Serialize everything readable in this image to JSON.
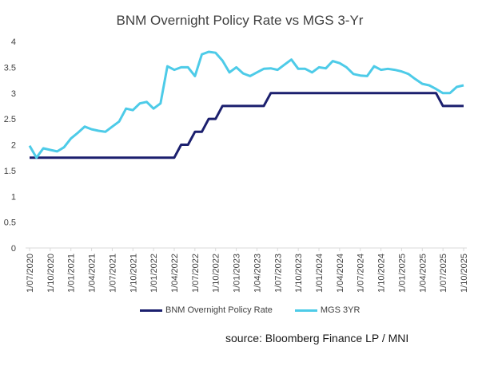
{
  "chart_data": {
    "type": "line",
    "title": "BNM Overnight Policy Rate vs MGS 3-Yr",
    "xlabel": "",
    "ylabel": "",
    "ylim": [
      0,
      4
    ],
    "yticks": [
      "0",
      "0.5",
      "1",
      "1.5",
      "2",
      "2.5",
      "3",
      "3.5",
      "4"
    ],
    "grid": false,
    "legend_position": "bottom",
    "x_tick_labels": [
      "1/07/2020",
      "1/10/2020",
      "1/01/2021",
      "1/04/2021",
      "1/07/2021",
      "1/10/2021",
      "1/01/2022",
      "1/04/2022",
      "1/07/2022",
      "1/10/2022",
      "1/01/2023",
      "1/04/2023",
      "1/07/2023",
      "1/10/2023",
      "1/01/2024",
      "1/04/2024",
      "1/07/2024",
      "1/10/2024",
      "1/01/2025",
      "1/04/2025",
      "1/07/2025",
      "1/10/2025"
    ],
    "x_months": [
      0,
      3,
      6,
      9,
      12,
      15,
      18,
      21,
      24,
      27,
      30,
      33,
      36,
      39,
      42,
      45,
      48,
      51,
      54,
      57,
      60,
      63
    ],
    "series": [
      {
        "name": "BNM Overnight Policy Rate",
        "color": "#1b1f6e",
        "x": [
          0,
          1,
          2,
          3,
          4,
          5,
          6,
          7,
          8,
          9,
          10,
          11,
          12,
          13,
          14,
          15,
          16,
          17,
          18,
          19,
          20,
          21,
          22,
          23,
          24,
          25,
          26,
          27,
          28,
          29,
          30,
          31,
          32,
          33,
          34,
          35,
          36,
          37,
          38,
          39,
          40,
          41,
          42,
          43,
          44,
          45,
          46,
          47,
          48,
          49,
          50,
          51,
          52,
          53,
          54,
          55,
          56,
          57,
          58,
          59,
          60,
          61,
          62,
          63
        ],
        "values": [
          1.75,
          1.75,
          1.75,
          1.75,
          1.75,
          1.75,
          1.75,
          1.75,
          1.75,
          1.75,
          1.75,
          1.75,
          1.75,
          1.75,
          1.75,
          1.75,
          1.75,
          1.75,
          1.75,
          1.75,
          1.75,
          1.75,
          2.0,
          2.0,
          2.25,
          2.25,
          2.5,
          2.5,
          2.75,
          2.75,
          2.75,
          2.75,
          2.75,
          2.75,
          2.75,
          3.0,
          3.0,
          3.0,
          3.0,
          3.0,
          3.0,
          3.0,
          3.0,
          3.0,
          3.0,
          3.0,
          3.0,
          3.0,
          3.0,
          3.0,
          3.0,
          3.0,
          3.0,
          3.0,
          3.0,
          3.0,
          3.0,
          3.0,
          3.0,
          3.0,
          2.75,
          2.75,
          2.75,
          2.75
        ]
      },
      {
        "name": "MGS 3YR",
        "color": "#4dcbe8",
        "x": [
          0,
          1,
          2,
          3,
          4,
          5,
          6,
          7,
          8,
          9,
          10,
          11,
          12,
          13,
          14,
          15,
          16,
          17,
          18,
          19,
          20,
          21,
          22,
          23,
          24,
          25,
          26,
          27,
          28,
          29,
          30,
          31,
          32,
          33,
          34,
          35,
          36,
          37,
          38,
          39,
          40,
          41,
          42,
          43,
          44,
          45,
          46,
          47,
          48,
          49,
          50,
          51,
          52,
          53,
          54,
          55,
          56,
          57,
          58,
          59,
          60,
          61,
          62,
          63
        ],
        "values": [
          1.98,
          1.75,
          1.93,
          1.9,
          1.87,
          1.95,
          2.12,
          2.23,
          2.35,
          2.3,
          2.27,
          2.25,
          2.35,
          2.45,
          2.7,
          2.67,
          2.8,
          2.83,
          2.7,
          2.8,
          3.52,
          3.45,
          3.5,
          3.5,
          3.33,
          3.75,
          3.8,
          3.78,
          3.63,
          3.4,
          3.5,
          3.38,
          3.33,
          3.4,
          3.47,
          3.48,
          3.45,
          3.55,
          3.65,
          3.47,
          3.47,
          3.4,
          3.5,
          3.48,
          3.62,
          3.58,
          3.5,
          3.37,
          3.34,
          3.33,
          3.52,
          3.45,
          3.47,
          3.45,
          3.42,
          3.37,
          3.27,
          3.18,
          3.15,
          3.08,
          3.0,
          3.0,
          3.12,
          3.15
        ]
      }
    ]
  },
  "source_text": "source: Bloomberg Finance LP / MNI"
}
